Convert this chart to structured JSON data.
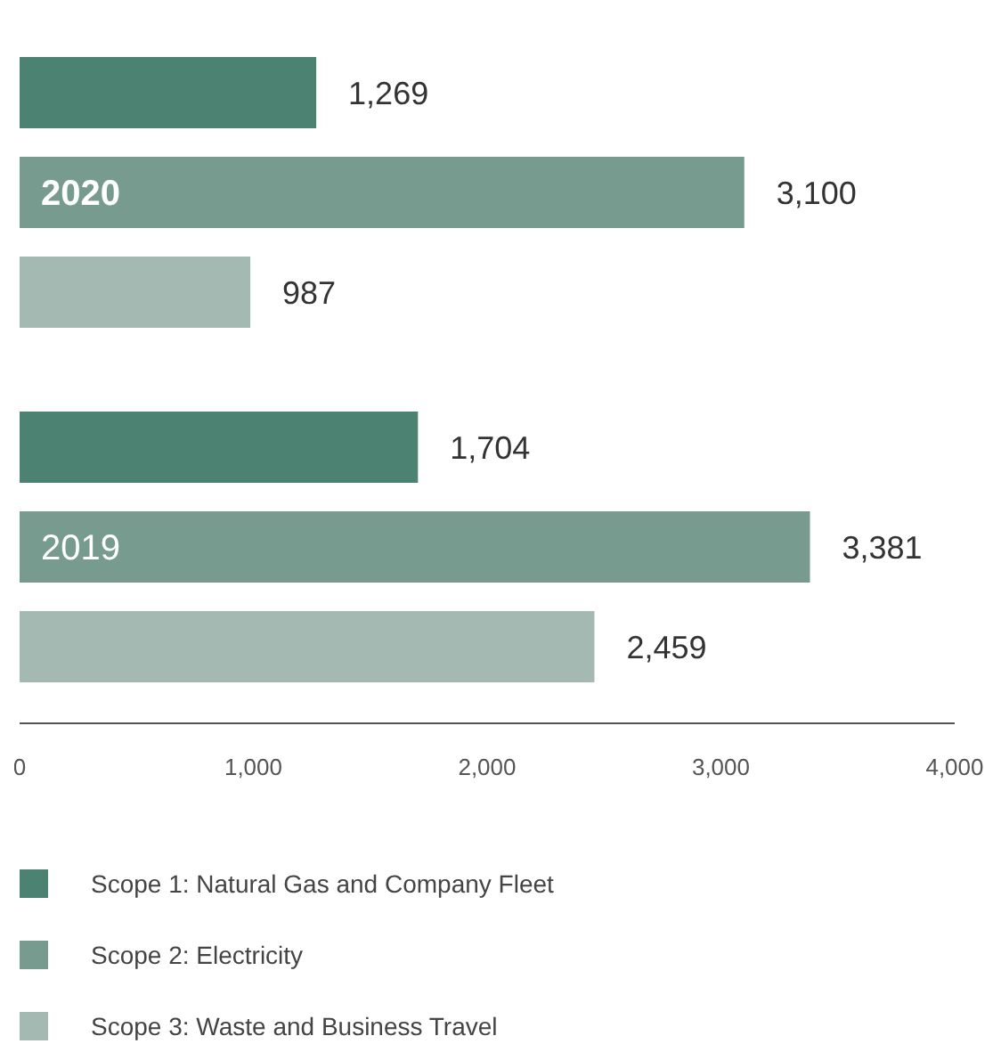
{
  "chart_data": {
    "type": "bar",
    "orientation": "horizontal",
    "categories": [
      "2020",
      "2019"
    ],
    "series": [
      {
        "name": "Scope 1: Natural Gas and Company Fleet",
        "color": "#4b8272",
        "values": [
          1269,
          1704
        ],
        "value_labels": [
          "1,269",
          "1,704"
        ]
      },
      {
        "name": "Scope 2: Electricity",
        "color": "#789b8f",
        "values": [
          3100,
          3381
        ],
        "value_labels": [
          "3,100",
          "3,381"
        ]
      },
      {
        "name": "Scope 3: Waste and Business Travel",
        "color": "#a4b9b1",
        "values": [
          987,
          2459
        ],
        "value_labels": [
          "987",
          "2,459"
        ]
      }
    ],
    "xlim": [
      0,
      4000
    ],
    "xticks": [
      0,
      {
        "value": 1000,
        "label": "1,000"
      },
      {
        "value": 2000,
        "label": "2,000"
      },
      {
        "value": 3000,
        "label": "3,000"
      },
      {
        "value": 4000,
        "label": "4,000"
      }
    ],
    "legend": "bottom",
    "grid": false
  }
}
